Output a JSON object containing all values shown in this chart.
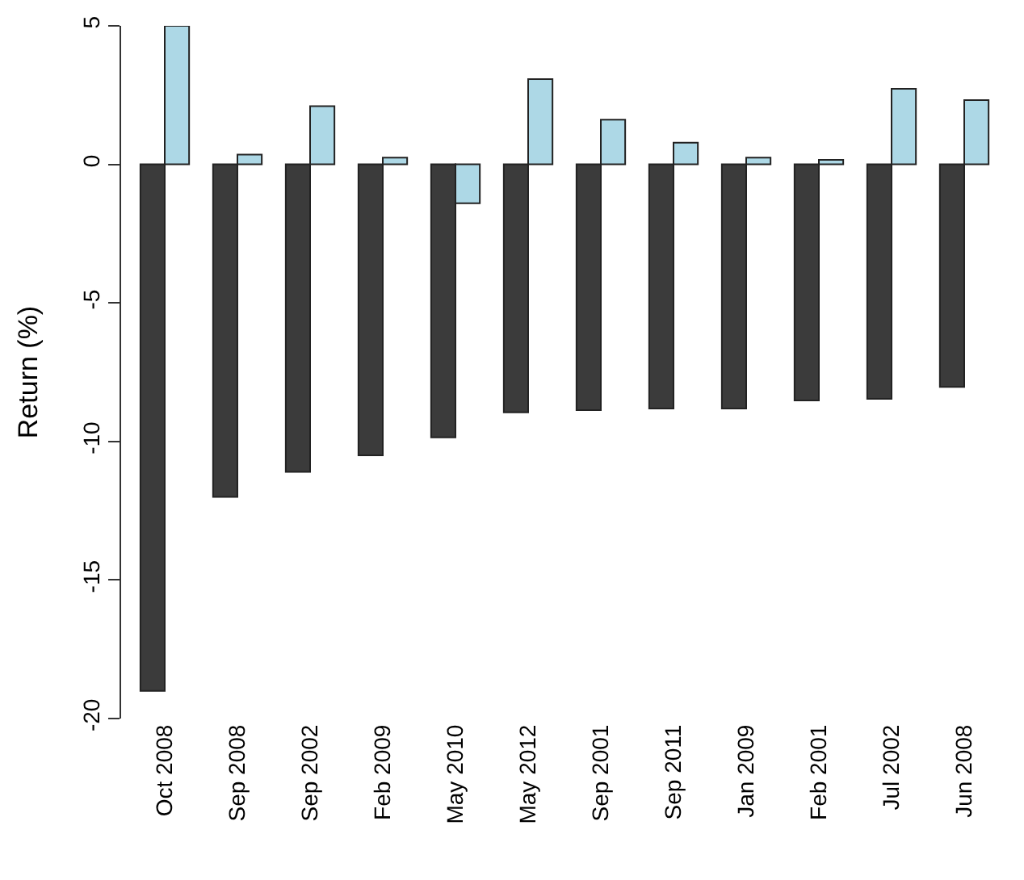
{
  "chart_data": {
    "type": "bar",
    "ylabel": "Return (%)",
    "categories": [
      "Oct 2008",
      "Sep 2008",
      "Sep 2002",
      "Feb 2009",
      "May 2010",
      "May 2012",
      "Sep 2001",
      "Sep 2011",
      "Jan 2009",
      "Feb 2001",
      "Jul 2002",
      "Jun 2008"
    ],
    "series": [
      {
        "color": "#3b3b3b",
        "values": [
          -19.0,
          -12.0,
          -11.1,
          -10.5,
          -9.85,
          -8.95,
          -8.87,
          -8.81,
          -8.81,
          -8.52,
          -8.46,
          -8.03
        ]
      },
      {
        "color": "#add8e6",
        "values": [
          5.0,
          0.35,
          2.1,
          0.24,
          -1.4,
          3.08,
          1.61,
          0.78,
          0.24,
          0.16,
          2.73,
          2.32
        ]
      }
    ],
    "ylim": [
      -20,
      5
    ],
    "yticks": [
      -20,
      -15,
      -10,
      -5,
      0,
      5
    ],
    "grid": false
  }
}
